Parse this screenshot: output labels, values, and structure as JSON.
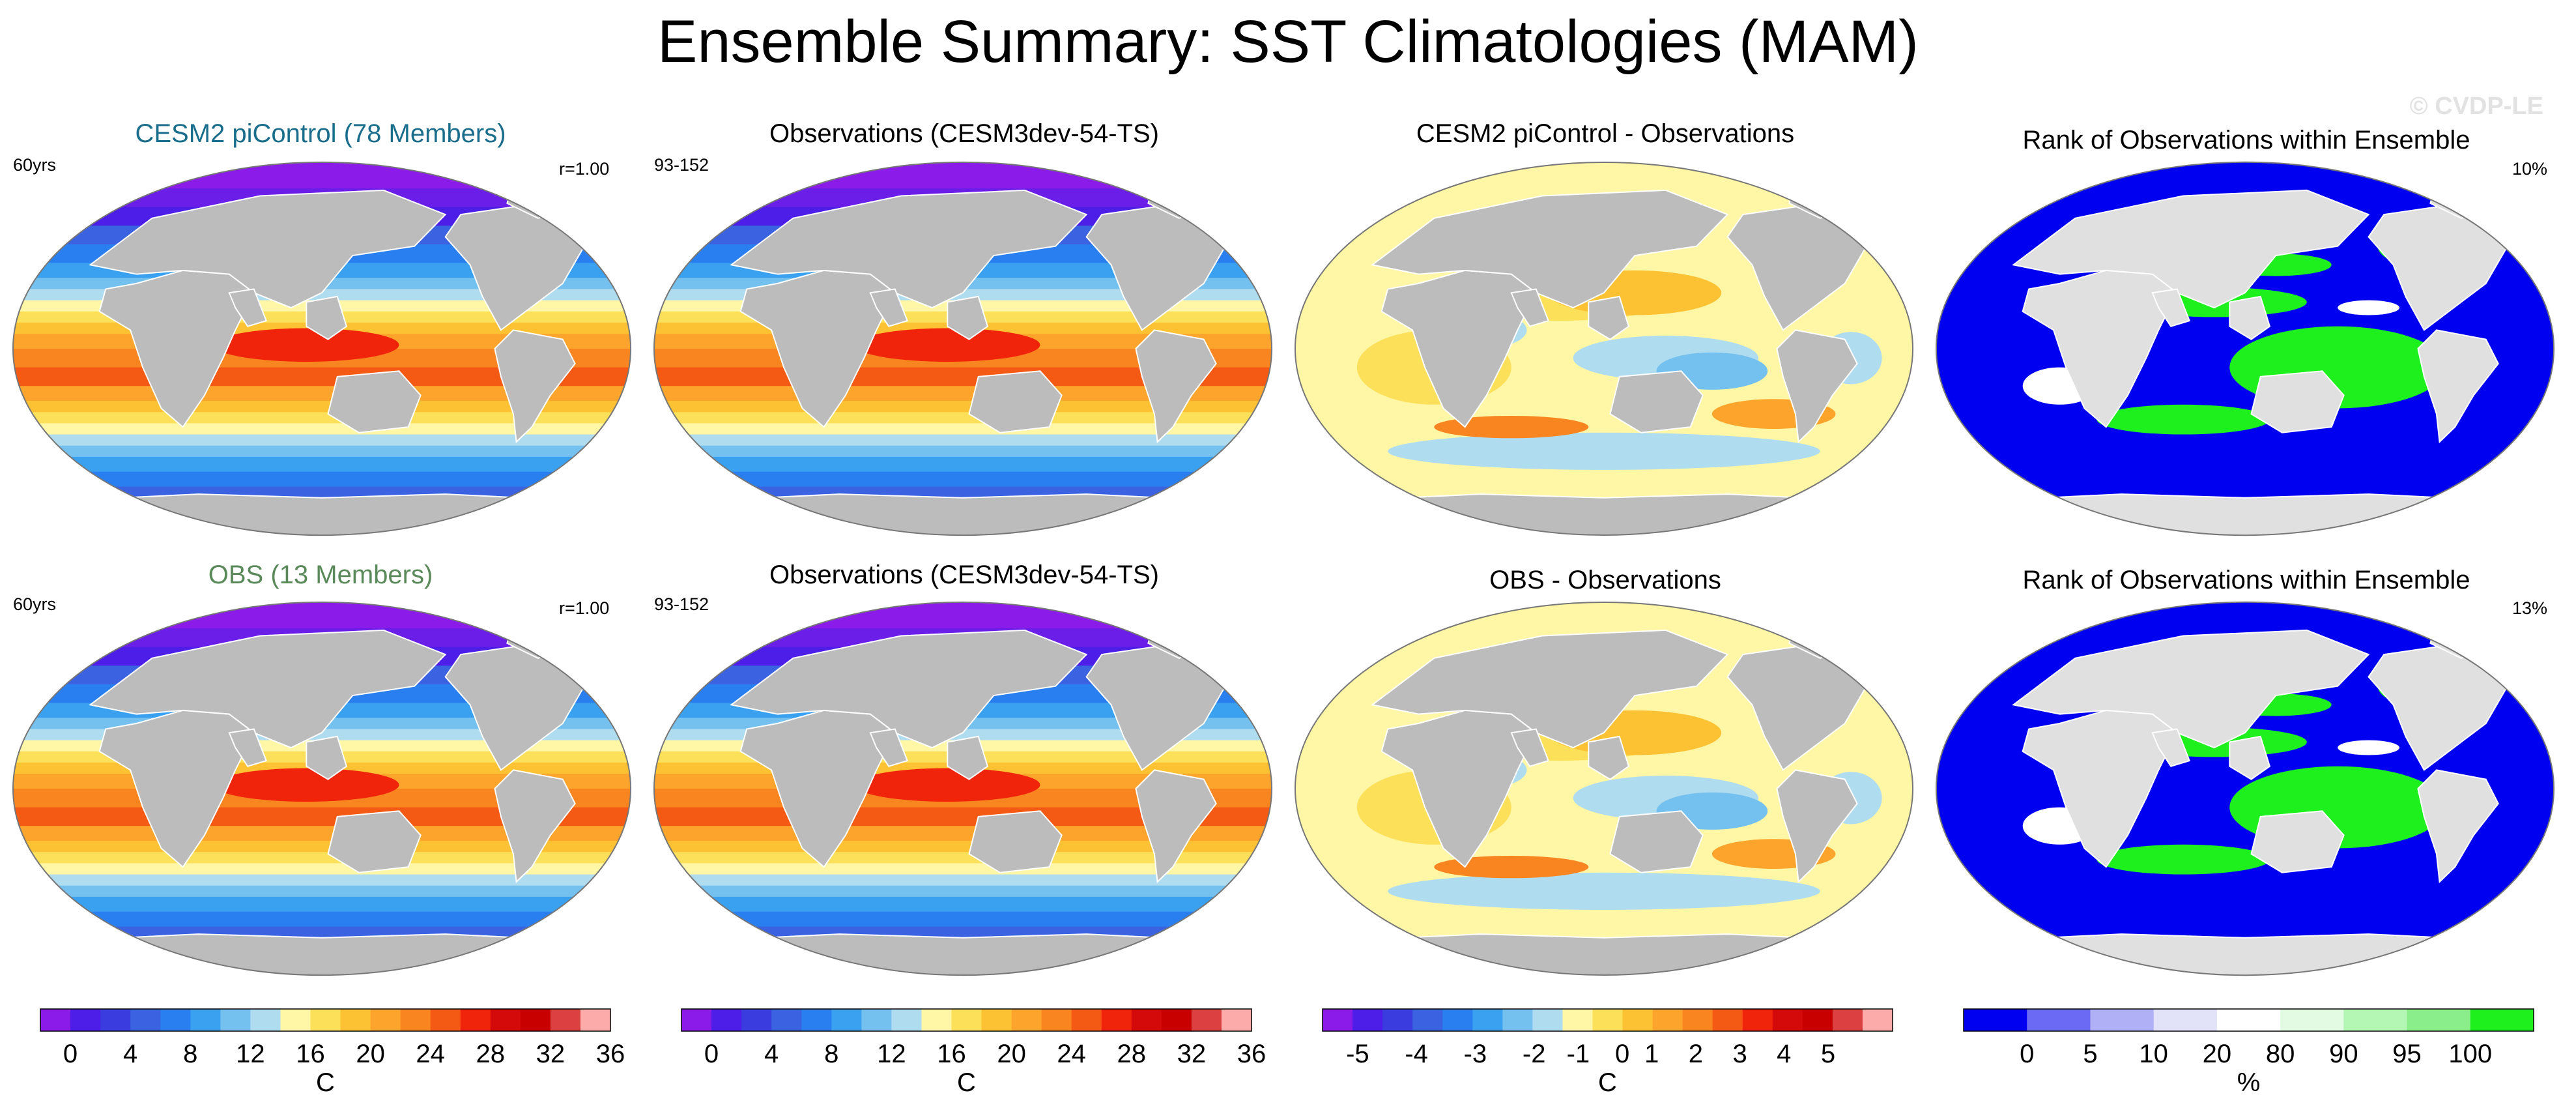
{
  "title": "Ensemble Summary: SST Climatologies (MAM)",
  "watermark": "© CVDP-LE",
  "colors": {
    "land": "#bcbcbc",
    "land_light": "#e0e0e0",
    "ensemble_title": "#1a6e8c",
    "obs_title": "#5a8a5a"
  },
  "panels": [
    {
      "id": "r1c1",
      "title": "CESM2 piControl (78 Members)",
      "title_color": "#1a6e8c",
      "left_note": "60yrs",
      "right_note": "r=1.00",
      "field": "clim"
    },
    {
      "id": "r1c2",
      "title": "Observations (CESM3dev-54-TS)",
      "title_color": "#000000",
      "left_note": "93-152",
      "right_note": "",
      "field": "clim"
    },
    {
      "id": "r1c3",
      "title": "CESM2 piControl - Observations",
      "title_color": "#000000",
      "left_note": "",
      "right_note": "",
      "field": "diff"
    },
    {
      "id": "r1c4",
      "title": "Rank of Observations within Ensemble",
      "title_color": "#000000",
      "left_note": "",
      "right_note": "10%",
      "field": "rank"
    },
    {
      "id": "r2c1",
      "title": "OBS (13 Members)",
      "title_color": "#5a8a5a",
      "left_note": "60yrs",
      "right_note": "r=1.00",
      "field": "clim"
    },
    {
      "id": "r2c2",
      "title": "Observations (CESM3dev-54-TS)",
      "title_color": "#000000",
      "left_note": "93-152",
      "right_note": "",
      "field": "clim"
    },
    {
      "id": "r2c3",
      "title": "OBS - Observations",
      "title_color": "#000000",
      "left_note": "",
      "right_note": "",
      "field": "diff"
    },
    {
      "id": "r2c4",
      "title": "Rank of Observations within Ensemble",
      "title_color": "#000000",
      "left_note": "",
      "right_note": "13%",
      "field": "rank"
    }
  ],
  "colorbars": [
    {
      "id": "cb1",
      "unit": "C",
      "colors": [
        "#8b1be8",
        "#4d1ee8",
        "#3b3ce0",
        "#3b62e0",
        "#2a7ff0",
        "#3aa0f0",
        "#74c0ee",
        "#b0dcf0",
        "#fff7a6",
        "#fde05a",
        "#fcc233",
        "#fca42b",
        "#f98520",
        "#f55a15",
        "#f0240a",
        "#d40a0a",
        "#c80000",
        "#dc4040",
        "#fcaaaa"
      ],
      "tick_labels": [
        "0",
        "4",
        "8",
        "12",
        "16",
        "20",
        "24",
        "28",
        "32",
        "36"
      ]
    },
    {
      "id": "cb2",
      "unit": "C",
      "colors": [
        "#8b1be8",
        "#4d1ee8",
        "#3b3ce0",
        "#3b62e0",
        "#2a7ff0",
        "#3aa0f0",
        "#74c0ee",
        "#b0dcf0",
        "#fff7a6",
        "#fde05a",
        "#fcc233",
        "#fca42b",
        "#f98520",
        "#f55a15",
        "#f0240a",
        "#d40a0a",
        "#c80000",
        "#dc4040",
        "#fcaaaa"
      ],
      "tick_labels": [
        "0",
        "4",
        "8",
        "12",
        "16",
        "20",
        "24",
        "28",
        "32",
        "36"
      ]
    },
    {
      "id": "cb3",
      "unit": "C",
      "colors": [
        "#8b1be8",
        "#4d1ee8",
        "#3b3ce0",
        "#3b62e0",
        "#2a7ff0",
        "#3aa0f0",
        "#74c0ee",
        "#b0dcf0",
        "#fff7a6",
        "#fde05a",
        "#fcc233",
        "#fca42b",
        "#f98520",
        "#f55a15",
        "#f0240a",
        "#d40a0a",
        "#c80000",
        "#dc4040",
        "#fcaaaa"
      ],
      "tick_labels": [
        "-5",
        "-4",
        "-3",
        "-2",
        "-1",
        "0",
        "1",
        "2",
        "3",
        "4",
        "5"
      ]
    },
    {
      "id": "cb4",
      "unit": "%",
      "colors": [
        "#0000f0",
        "#6a6af4",
        "#b0b0f6",
        "#e2e2f8",
        "#ffffff",
        "#e2fbe2",
        "#b4f7b4",
        "#8aee8a",
        "#1ef01e"
      ],
      "tick_labels": [
        "0",
        "5",
        "10",
        "20",
        "80",
        "90",
        "95",
        "100"
      ]
    }
  ],
  "chart_data": {
    "type": "heatmap",
    "description_fields": {
      "clim": "SST climatology (MAM), C",
      "diff": "SST difference, C",
      "rank": "Rank of observations within ensemble, %"
    },
    "value_range": {
      "clim": [
        0,
        36
      ],
      "diff": [
        -5,
        5
      ],
      "rank": [
        0,
        100
      ]
    }
  }
}
